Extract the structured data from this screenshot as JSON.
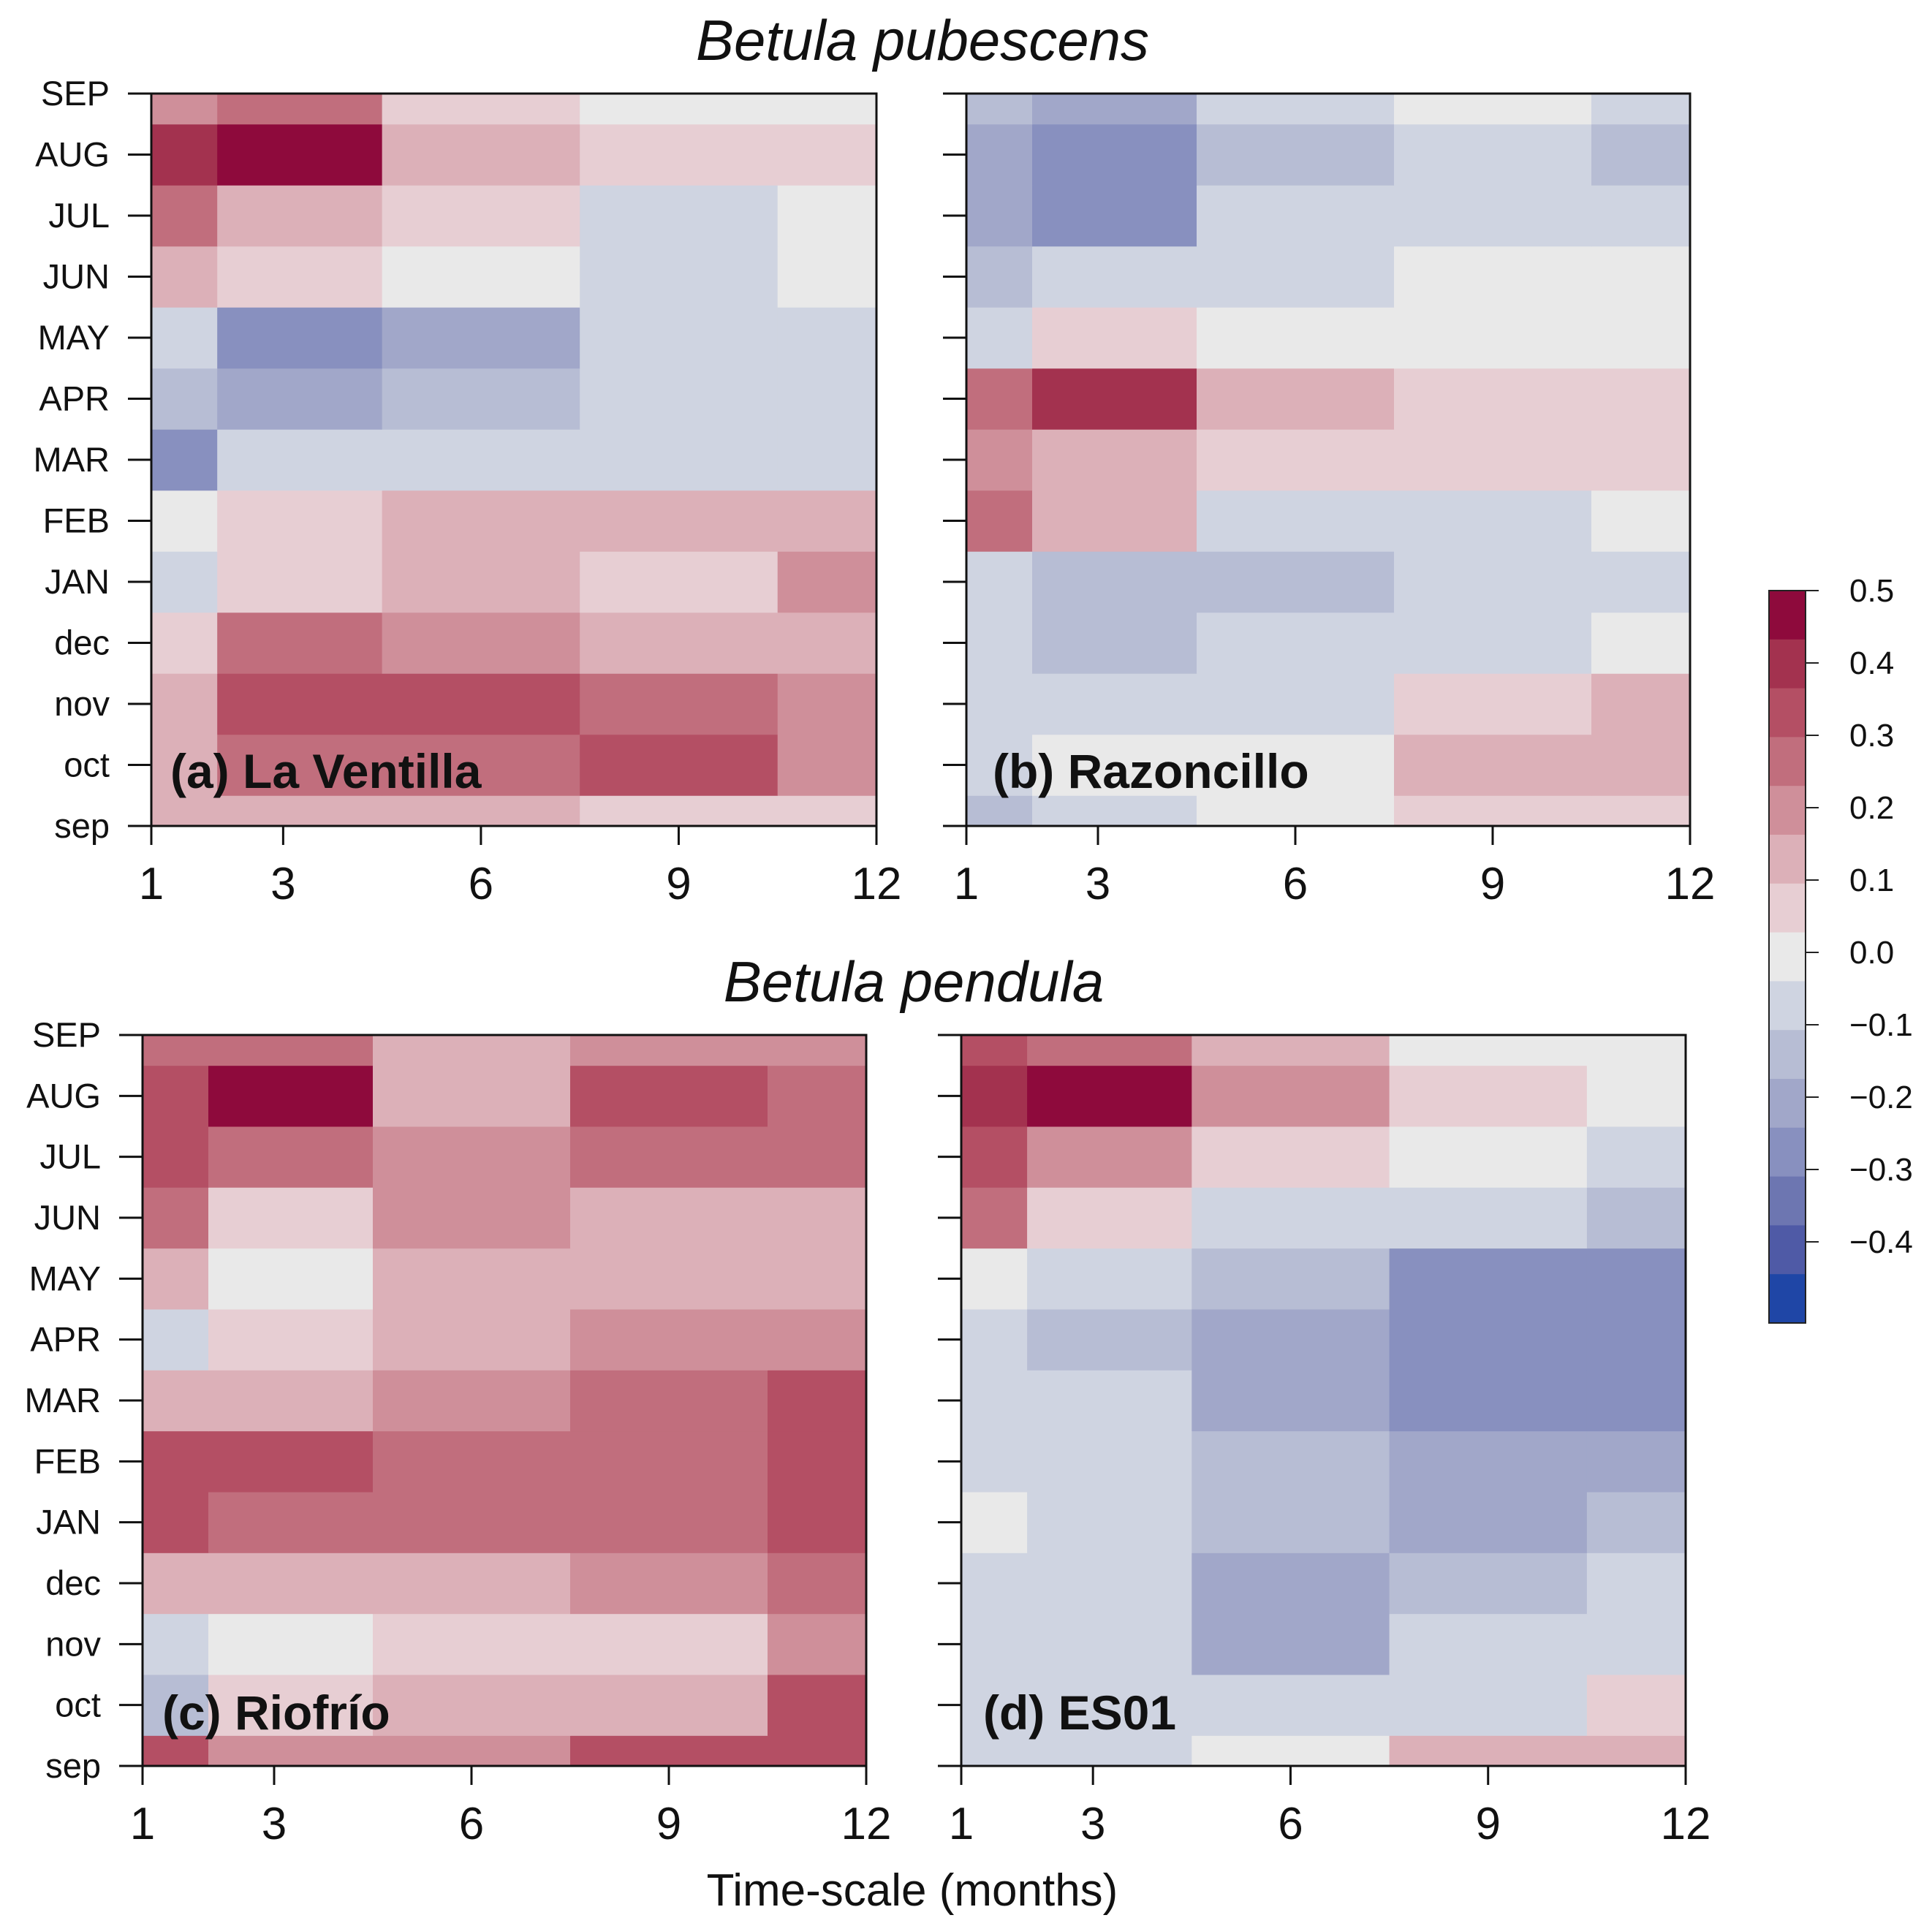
{
  "figure": {
    "species_titles": [
      "Betula pubescens",
      "Betula pendula"
    ],
    "x_axis_label": "Time-scale (months)"
  },
  "chart_data": [
    {
      "type": "heatmap",
      "panel_label": "(a) La Ventilla",
      "species": "Betula pubescens",
      "xlabel": "Time-scale (months)",
      "ylabel": "",
      "x_ticks": [
        "1",
        "3",
        "6",
        "9",
        "12"
      ],
      "x": [
        1,
        3,
        6,
        9,
        12
      ],
      "y_ticks": [
        "sep",
        "oct",
        "nov",
        "dec",
        "JAN",
        "FEB",
        "MAR",
        "APR",
        "MAY",
        "JUN",
        "JUL",
        "AUG",
        "SEP"
      ],
      "z": [
        [
          0.1,
          0.15,
          0.1,
          0.05,
          0.05
        ],
        [
          0.15,
          0.25,
          0.25,
          0.3,
          0.2
        ],
        [
          0.15,
          0.3,
          0.3,
          0.25,
          0.2
        ],
        [
          0.05,
          0.25,
          0.2,
          0.15,
          0.15
        ],
        [
          -0.1,
          0.05,
          0.15,
          0.05,
          0.2
        ],
        [
          0.0,
          0.05,
          0.15,
          0.15,
          0.15
        ],
        [
          -0.25,
          -0.1,
          -0.05,
          -0.05,
          -0.05
        ],
        [
          -0.15,
          -0.2,
          -0.15,
          -0.1,
          -0.05
        ],
        [
          -0.1,
          -0.25,
          -0.2,
          -0.1,
          -0.05
        ],
        [
          0.15,
          0.05,
          0.0,
          -0.05,
          0.0
        ],
        [
          0.25,
          0.15,
          0.05,
          -0.05,
          0.0
        ],
        [
          0.4,
          0.45,
          0.15,
          0.05,
          0.05
        ],
        [
          0.2,
          0.25,
          0.05,
          0.0,
          0.0
        ]
      ],
      "zlim": [
        -0.5,
        0.5
      ]
    },
    {
      "type": "heatmap",
      "panel_label": "(b) Razoncillo",
      "species": "Betula pubescens",
      "xlabel": "Time-scale (months)",
      "ylabel": "",
      "x_ticks": [
        "1",
        "3",
        "6",
        "9",
        "12"
      ],
      "x": [
        1,
        3,
        6,
        9,
        12
      ],
      "y_ticks": [
        "sep",
        "oct",
        "nov",
        "dec",
        "JAN",
        "FEB",
        "MAR",
        "APR",
        "MAY",
        "JUN",
        "JUL",
        "AUG",
        "SEP"
      ],
      "z": [
        [
          -0.15,
          -0.05,
          0.0,
          0.05,
          0.05
        ],
        [
          -0.05,
          0.0,
          0.0,
          0.15,
          0.15
        ],
        [
          -0.1,
          -0.1,
          -0.05,
          0.05,
          0.1
        ],
        [
          -0.1,
          -0.15,
          -0.1,
          -0.05,
          0.0
        ],
        [
          -0.05,
          -0.15,
          -0.15,
          -0.1,
          -0.05
        ],
        [
          0.25,
          0.1,
          -0.05,
          -0.05,
          0.0
        ],
        [
          0.2,
          0.15,
          0.05,
          0.05,
          0.05
        ],
        [
          0.25,
          0.4,
          0.15,
          0.05,
          0.05
        ],
        [
          -0.1,
          0.05,
          0.0,
          0.0,
          0.0
        ],
        [
          -0.15,
          -0.1,
          -0.05,
          0.0,
          0.0
        ],
        [
          -0.2,
          -0.25,
          -0.1,
          -0.05,
          -0.05
        ],
        [
          -0.2,
          -0.25,
          -0.15,
          -0.1,
          -0.15
        ],
        [
          -0.15,
          -0.2,
          -0.1,
          0.0,
          -0.1
        ]
      ],
      "zlim": [
        -0.5,
        0.5
      ]
    },
    {
      "type": "heatmap",
      "panel_label": "(c) Riofrío",
      "species": "Betula pendula",
      "xlabel": "Time-scale (months)",
      "ylabel": "",
      "x_ticks": [
        "1",
        "3",
        "6",
        "9",
        "12"
      ],
      "x": [
        1,
        3,
        6,
        9,
        12
      ],
      "y_ticks": [
        "sep",
        "oct",
        "nov",
        "dec",
        "JAN",
        "FEB",
        "MAR",
        "APR",
        "MAY",
        "JUN",
        "JUL",
        "AUG",
        "SEP"
      ],
      "z": [
        [
          0.3,
          0.2,
          0.2,
          0.3,
          0.35
        ],
        [
          -0.15,
          0.05,
          0.1,
          0.15,
          0.3
        ],
        [
          -0.1,
          0.0,
          0.05,
          0.05,
          0.2
        ],
        [
          0.15,
          0.1,
          0.15,
          0.2,
          0.25
        ],
        [
          0.3,
          0.25,
          0.25,
          0.25,
          0.3
        ],
        [
          0.3,
          0.35,
          0.25,
          0.25,
          0.3
        ],
        [
          0.1,
          0.15,
          0.2,
          0.25,
          0.3
        ],
        [
          -0.05,
          0.05,
          0.15,
          0.2,
          0.2
        ],
        [
          0.1,
          0.0,
          0.15,
          0.1,
          0.15
        ],
        [
          0.25,
          0.05,
          0.2,
          0.15,
          0.15
        ],
        [
          0.3,
          0.25,
          0.2,
          0.25,
          0.25
        ],
        [
          0.3,
          0.45,
          0.1,
          0.3,
          0.25
        ],
        [
          0.25,
          0.25,
          0.15,
          0.2,
          0.2
        ]
      ],
      "zlim": [
        -0.5,
        0.5
      ]
    },
    {
      "type": "heatmap",
      "panel_label": "(d) ES01",
      "species": "Betula pendula",
      "xlabel": "Time-scale (months)",
      "ylabel": "",
      "x_ticks": [
        "1",
        "3",
        "6",
        "9",
        "12"
      ],
      "x": [
        1,
        3,
        6,
        9,
        12
      ],
      "y_ticks": [
        "sep",
        "oct",
        "nov",
        "dec",
        "JAN",
        "FEB",
        "MAR",
        "APR",
        "MAY",
        "JUN",
        "JUL",
        "AUG",
        "SEP"
      ],
      "z": [
        [
          -0.05,
          -0.05,
          0.0,
          0.1,
          0.15
        ],
        [
          -0.05,
          -0.05,
          -0.1,
          -0.05,
          0.05
        ],
        [
          -0.05,
          -0.1,
          -0.2,
          -0.1,
          -0.05
        ],
        [
          -0.05,
          -0.1,
          -0.2,
          -0.15,
          -0.1
        ],
        [
          0.0,
          -0.1,
          -0.15,
          -0.2,
          -0.15
        ],
        [
          -0.05,
          -0.1,
          -0.15,
          -0.2,
          -0.2
        ],
        [
          -0.05,
          -0.1,
          -0.2,
          -0.25,
          -0.3
        ],
        [
          -0.1,
          -0.15,
          -0.2,
          -0.25,
          -0.3
        ],
        [
          0.0,
          -0.1,
          -0.15,
          -0.25,
          -0.3
        ],
        [
          0.25,
          0.05,
          -0.05,
          -0.1,
          -0.15
        ],
        [
          0.35,
          0.2,
          0.05,
          0.0,
          -0.05
        ],
        [
          0.4,
          0.45,
          0.2,
          0.05,
          0.0
        ],
        [
          0.3,
          0.25,
          0.1,
          0.0,
          0.0
        ]
      ],
      "zlim": [
        -0.5,
        0.5
      ]
    }
  ],
  "colorbar": {
    "tick_labels": [
      "0.5",
      "0.4",
      "0.3",
      "0.2",
      "0.1",
      "0.0",
      "−0.1",
      "−0.2",
      "−0.3",
      "−0.4"
    ],
    "levels_top_to_bottom": [
      0.45,
      0.35,
      0.25,
      0.15,
      0.05,
      -0.05,
      -0.15,
      -0.25,
      -0.35,
      -0.45
    ],
    "colors_top_to_bottom": [
      "#8e0a3c",
      "#a3324f",
      "#b44f64",
      "#c16e7d",
      "#cf8f9a",
      "#dcb0b8",
      "#e7ced3",
      "#e9e9e9",
      "#cfd4e1",
      "#b7bdd4",
      "#a1a7c9",
      "#8890bf",
      "#6d76b1",
      "#4f5aa6",
      "#1f46a6"
    ]
  }
}
